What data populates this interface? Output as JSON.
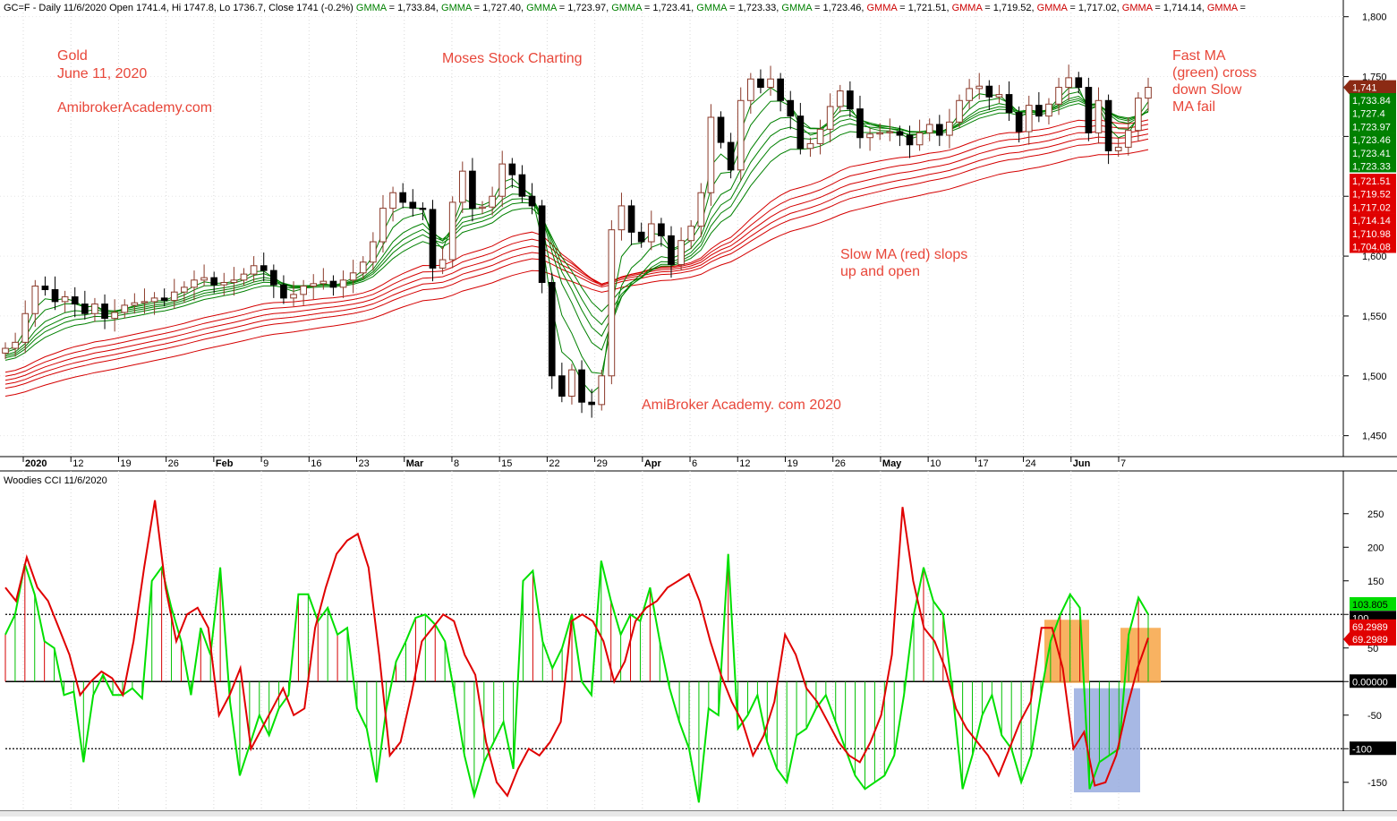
{
  "header": {
    "prefix": "GC=F - Daily 11/6/2020 Open 1741.4, Hi 1747.8, Lo 1736.7, Close 1741 (-0.2%)",
    "gmma": [
      {
        "label": "GMMA",
        "value": "1,733.84",
        "color": "#008000"
      },
      {
        "label": "GMMA",
        "value": "1,727.40",
        "color": "#008000"
      },
      {
        "label": "GMMA",
        "value": "1,723.97",
        "color": "#008000"
      },
      {
        "label": "GMMA",
        "value": "1,723.41",
        "color": "#008000"
      },
      {
        "label": "GMMA",
        "value": "1,723.33",
        "color": "#008000"
      },
      {
        "label": "GMMA",
        "value": "1,723.46",
        "color": "#008000"
      },
      {
        "label": "GMMA",
        "value": "1,721.51",
        "color": "#cc0000"
      },
      {
        "label": "GMMA",
        "value": "1,719.52",
        "color": "#cc0000"
      },
      {
        "label": "GMMA",
        "value": "1,717.02",
        "color": "#cc0000"
      },
      {
        "label": "GMMA",
        "value": "1,714.14",
        "color": "#cc0000"
      },
      {
        "label": "GMMA",
        "value": "=",
        "color": "#cc0000"
      }
    ]
  },
  "annotations": {
    "gold": "Gold",
    "date": "June 11, 2020",
    "site": "AmibrokerAcademy.com",
    "brand": "Moses Stock Charting",
    "fast_1": "Fast MA",
    "fast_2": "(green) cross",
    "fast_3": "down Slow",
    "fast_4": "MA fail",
    "slow_1": "Slow MA (red) slops",
    "slow_2": "up and open",
    "watermark": "AmiBroker Academy. com  2020"
  },
  "price_axis": {
    "ticks": [
      "1,800",
      "1,750",
      "1,700",
      "1,650",
      "1,600",
      "1,550",
      "1,500",
      "1,450"
    ]
  },
  "price_labels": {
    "close": {
      "text": "1,741",
      "color": "#8b2a14"
    },
    "green": {
      "values": [
        "1,733.84",
        "1,727.4",
        "1,723.97",
        "1,723.46",
        "1,723.41",
        "1,723.33"
      ],
      "color": "#008000"
    },
    "red": {
      "values": [
        "1,721.51",
        "1,719.52",
        "1,717.02",
        "1,714.14",
        "1,710.98",
        "1,704.08"
      ],
      "color": "#e00000"
    }
  },
  "x_axis": {
    "labels": [
      {
        "t": "2020",
        "bold": true
      },
      {
        "t": "12"
      },
      {
        "t": "19"
      },
      {
        "t": "26"
      },
      {
        "t": "Feb",
        "bold": true
      },
      {
        "t": "9"
      },
      {
        "t": "16"
      },
      {
        "t": "23"
      },
      {
        "t": "Mar",
        "bold": true
      },
      {
        "t": "8"
      },
      {
        "t": "15"
      },
      {
        "t": "22"
      },
      {
        "t": "29"
      },
      {
        "t": "Apr",
        "bold": true
      },
      {
        "t": "6"
      },
      {
        "t": "12"
      },
      {
        "t": "19"
      },
      {
        "t": "26"
      },
      {
        "t": "May",
        "bold": true
      },
      {
        "t": "10"
      },
      {
        "t": "17"
      },
      {
        "t": "24"
      },
      {
        "t": "Jun",
        "bold": true
      },
      {
        "t": "7"
      }
    ]
  },
  "cci": {
    "title": "Woodies CCI   11/6/2020",
    "ticks": [
      "250",
      "200",
      "150",
      "100",
      "50",
      "0",
      "-50",
      "-100",
      "-150"
    ],
    "labels": {
      "green": "103.805",
      "hundred": "100",
      "red_a": "69.2989",
      "red_b": "69.2989",
      "zero": "0.00000",
      "minus_hundred": "-100"
    }
  },
  "chart_data": [
    {
      "type": "candlestick",
      "title": "GC=F - Daily",
      "ylim": [
        1440,
        1805
      ],
      "y_ticks": [
        1450,
        1500,
        1550,
        1600,
        1650,
        1700,
        1750,
        1800
      ],
      "x_tick_labels": [
        "2020",
        "12",
        "19",
        "26",
        "Feb",
        "9",
        "16",
        "23",
        "Mar",
        "8",
        "15",
        "22",
        "29",
        "Apr",
        "6",
        "12",
        "19",
        "26",
        "May",
        "10",
        "17",
        "24",
        "Jun",
        "7"
      ],
      "last_bar": {
        "open": 1741.4,
        "high": 1747.8,
        "low": 1736.7,
        "close": 1741,
        "change_pct": -0.2
      },
      "gmma_fast": [
        1733.84,
        1727.4,
        1723.97,
        1723.41,
        1723.33,
        1723.46
      ],
      "gmma_slow": [
        1721.51,
        1719.52,
        1717.02,
        1714.14,
        1710.98,
        1704.08
      ],
      "closes": [
        1523,
        1528,
        1552,
        1575,
        1572,
        1562,
        1566,
        1560,
        1552,
        1560,
        1548,
        1553,
        1559,
        1561,
        1562,
        1565,
        1563,
        1570,
        1574,
        1580,
        1582,
        1576,
        1578,
        1580,
        1585,
        1592,
        1588,
        1576,
        1565,
        1568,
        1575,
        1577,
        1579,
        1574,
        1580,
        1586,
        1595,
        1612,
        1640,
        1653,
        1645,
        1640,
        1639,
        1590,
        1597,
        1645,
        1671,
        1640,
        1641,
        1650,
        1677,
        1668,
        1650,
        1642,
        1578,
        1500,
        1483,
        1505,
        1478,
        1476,
        1500,
        1622,
        1642,
        1620,
        1612,
        1627,
        1617,
        1593,
        1613,
        1625,
        1653,
        1716,
        1695,
        1672,
        1730,
        1748,
        1741,
        1748,
        1730,
        1717,
        1690,
        1694,
        1706,
        1725,
        1738,
        1723,
        1699,
        1702,
        1703,
        1704,
        1701,
        1693,
        1703,
        1710,
        1701,
        1712,
        1730,
        1740,
        1742,
        1733,
        1735,
        1720,
        1704,
        1726,
        1717,
        1727,
        1741,
        1749,
        1741,
        1703,
        1730,
        1688,
        1691,
        1705,
        1732,
        1741
      ]
    },
    {
      "type": "line",
      "title": "Woodies CCI",
      "ylim": [
        -185,
        295
      ],
      "y_ticks": [
        -150,
        -100,
        -50,
        0,
        50,
        100,
        150,
        200,
        250
      ],
      "reference_lines": [
        100,
        0,
        -100
      ],
      "series": [
        {
          "name": "",
          "color": "#00e000",
          "values": [
            70,
            100,
            175,
            130,
            60,
            50,
            -20,
            -15,
            -120,
            -20,
            10,
            -20,
            -20,
            -10,
            -25,
            150,
            170,
            110,
            60,
            -20,
            80,
            40,
            170,
            -30,
            -140,
            -95,
            -50,
            -80,
            -40,
            -20,
            130,
            130,
            90,
            110,
            70,
            80,
            -40,
            -70,
            -150,
            -40,
            30,
            60,
            95,
            100,
            85,
            60,
            -20,
            -110,
            -170,
            -120,
            -90,
            -60,
            -130,
            150,
            165,
            60,
            20,
            50,
            100,
            0,
            -20,
            180,
            120,
            70,
            100,
            90,
            140,
            60,
            -10,
            -60,
            -100,
            -180,
            -40,
            -50,
            190,
            -70,
            -50,
            -20,
            -90,
            -130,
            -150,
            -80,
            -70,
            -40,
            -20,
            -60,
            -100,
            -140,
            -160,
            -150,
            -140,
            -110,
            -20,
            100,
            170,
            120,
            100,
            -20,
            -160,
            -110,
            -50,
            -20,
            -80,
            -100,
            -150,
            -110,
            -20,
            60,
            100,
            130,
            110,
            -160,
            -120,
            -110,
            -100,
            70,
            125,
            100
          ]
        },
        {
          "name": "",
          "color": "#e00000",
          "values": [
            140,
            120,
            185,
            140,
            120,
            80,
            40,
            -20,
            0,
            15,
            5,
            -20,
            60,
            170,
            270,
            140,
            60,
            100,
            110,
            80,
            -50,
            -20,
            20,
            -100,
            -70,
            -40,
            -10,
            -50,
            -40,
            80,
            140,
            190,
            210,
            220,
            170,
            40,
            -110,
            -90,
            -20,
            60,
            80,
            100,
            90,
            40,
            10,
            -90,
            -150,
            -170,
            -130,
            -100,
            -110,
            -90,
            -60,
            90,
            100,
            90,
            60,
            0,
            30,
            90,
            110,
            120,
            140,
            150,
            160,
            120,
            60,
            10,
            -30,
            -60,
            -110,
            -80,
            -30,
            70,
            40,
            -10,
            -30,
            -60,
            -90,
            -110,
            -120,
            -90,
            -50,
            40,
            260,
            150,
            80,
            60,
            20,
            -40,
            -70,
            -90,
            -110,
            -140,
            -100,
            -60,
            -30,
            80,
            80,
            20,
            -100,
            -75,
            -155,
            -150,
            -110,
            -40,
            20,
            65
          ]
        }
      ]
    }
  ]
}
